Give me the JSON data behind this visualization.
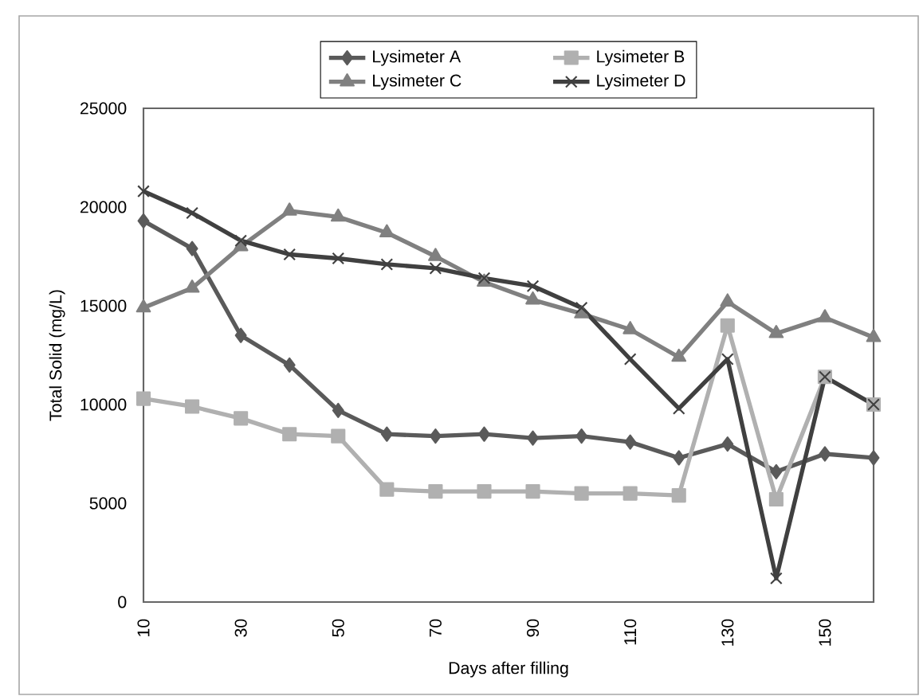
{
  "chart_data": {
    "type": "line",
    "xlabel": "Days after filling",
    "ylabel": "Total Solid  (mg/L)",
    "x": [
      10,
      20,
      30,
      40,
      50,
      60,
      70,
      80,
      90,
      100,
      110,
      120,
      130,
      140,
      150,
      160
    ],
    "xlim": [
      10,
      160
    ],
    "xticks": [
      10,
      30,
      50,
      70,
      90,
      110,
      130,
      150
    ],
    "ylim": [
      0,
      25000
    ],
    "yticks": [
      0,
      5000,
      10000,
      15000,
      20000,
      25000
    ],
    "grid": false,
    "legend": "top",
    "line_style": "solid",
    "series": [
      {
        "name": "Lysimeter A",
        "color": "#5a5a5a",
        "marker": "diamond",
        "values": [
          19300,
          17900,
          13500,
          12000,
          9700,
          8500,
          8400,
          8500,
          8300,
          8400,
          8100,
          7300,
          8000,
          6600,
          7500,
          7300
        ]
      },
      {
        "name": "Lysimeter B",
        "color": "#b0b0b0",
        "marker": "square",
        "values": [
          10300,
          9900,
          9300,
          8500,
          8400,
          5700,
          5600,
          5600,
          5600,
          5500,
          5500,
          5400,
          14000,
          5200,
          11400,
          10000
        ]
      },
      {
        "name": "Lysimeter C",
        "color": "#808080",
        "marker": "triangle",
        "values": [
          14900,
          15900,
          18000,
          19800,
          19500,
          18700,
          17500,
          16200,
          15300,
          14600,
          13800,
          12400,
          15200,
          13600,
          14400,
          13400
        ]
      },
      {
        "name": "Lysimeter D",
        "color": "#404040",
        "marker": "cross",
        "values": [
          20800,
          19700,
          18300,
          17600,
          17400,
          17100,
          16900,
          16400,
          16000,
          14900,
          12300,
          9800,
          12300,
          1200,
          11400,
          10000
        ]
      }
    ]
  }
}
